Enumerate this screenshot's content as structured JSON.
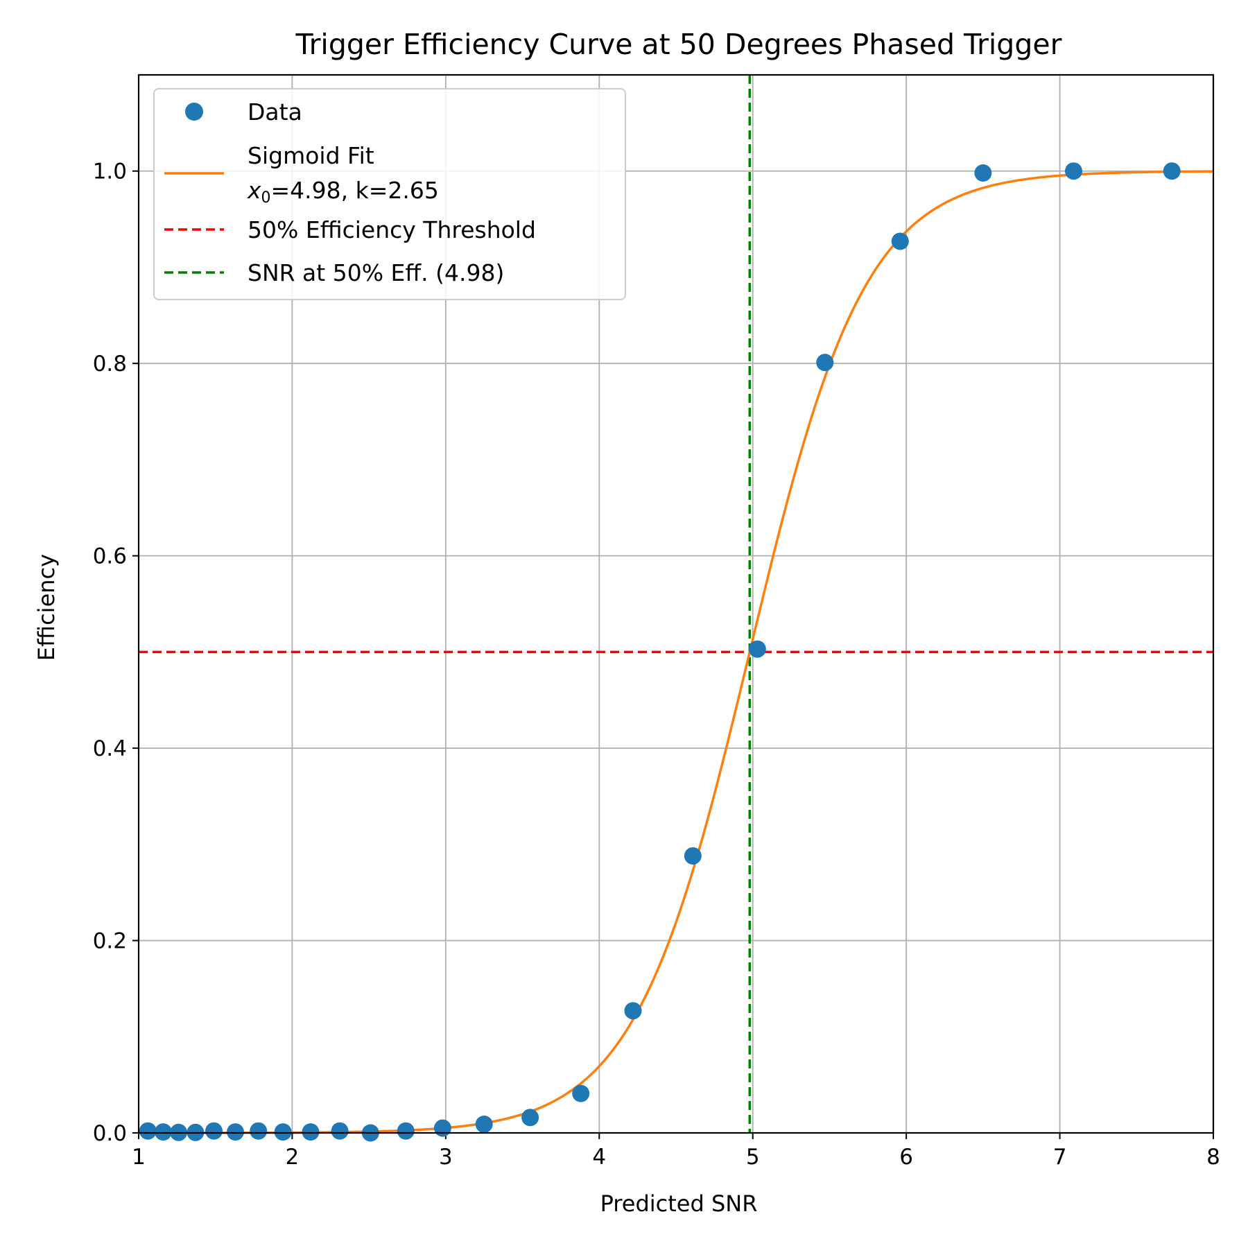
{
  "chart_data": {
    "type": "line",
    "title": "Trigger Efficiency Curve at 50 Degrees Phased Trigger",
    "xlabel": "Predicted SNR",
    "ylabel": "Efficiency",
    "xlim": [
      1,
      8
    ],
    "ylim": [
      0,
      1.1
    ],
    "grid": true,
    "legend_position": "upper-left",
    "x_ticks": [
      "1",
      "2",
      "3",
      "4",
      "5",
      "6",
      "7",
      "8"
    ],
    "y_ticks": [
      "0.0",
      "0.2",
      "0.4",
      "0.6",
      "0.8",
      "1.0"
    ],
    "scatter": {
      "name": "Data",
      "color": "#1f77b4",
      "x": [
        1.06,
        1.16,
        1.26,
        1.37,
        1.49,
        1.63,
        1.78,
        1.94,
        2.12,
        2.31,
        2.51,
        2.74,
        2.98,
        3.25,
        3.55,
        3.88,
        4.22,
        4.61,
        5.03,
        5.47,
        5.96,
        6.5,
        7.09,
        7.73
      ],
      "y": [
        0.002,
        0.001,
        0.0005,
        0.0005,
        0.002,
        0.001,
        0.002,
        0.001,
        0.001,
        0.002,
        0.0,
        0.002,
        0.005,
        0.009,
        0.016,
        0.041,
        0.127,
        0.288,
        0.503,
        0.801,
        0.927,
        0.998,
        1.0,
        1.0
      ]
    },
    "fit": {
      "name": "Sigmoid Fit",
      "label_line2_prefix": "x",
      "label_line2_subscript": "0",
      "label_line2_rest": "=4.98, k=2.65",
      "color": "#ff7f0e",
      "x0": 4.98,
      "k": 2.65
    },
    "hline": {
      "name": "50% Efficiency Threshold",
      "y": 0.5,
      "color": "#ff0000"
    },
    "vline": {
      "name": "SNR at 50% Eff. (4.98)",
      "x": 4.98,
      "color": "#008000"
    }
  }
}
